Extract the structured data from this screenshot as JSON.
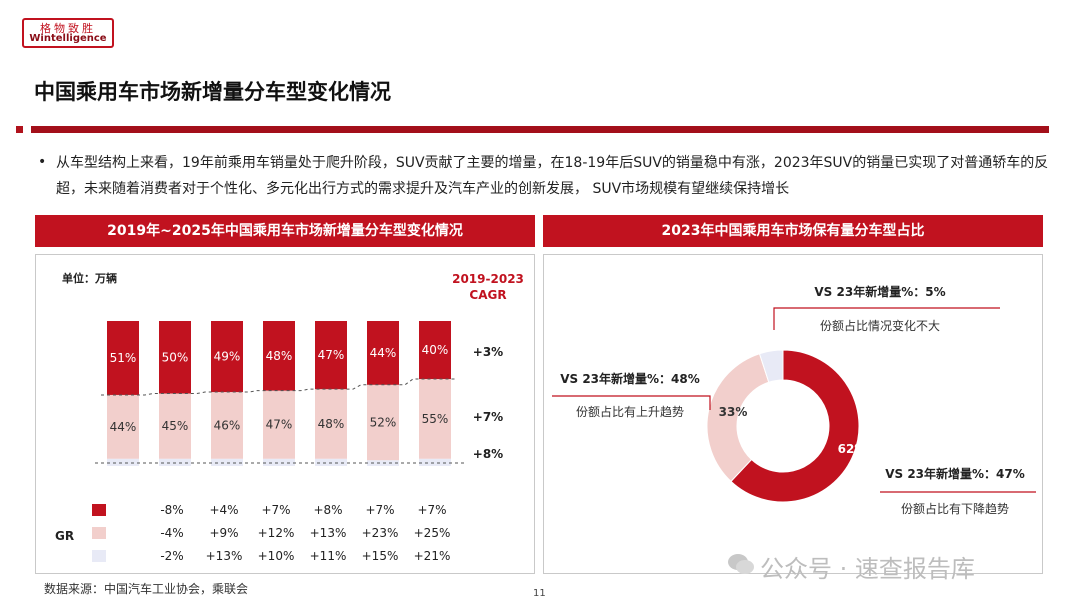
{
  "logo": {
    "cn": "格物致胜",
    "en": "Wintelligence"
  },
  "title": "中国乘用车市场新增量分车型变化情况",
  "bullet": "从车型结构上来看，19年前乘用车销量处于爬升阶段，SUV贡献了主要的增量，在18-19年后SUV的销量稳中有涨，2023年SUV的销量已实现了对普通轿车的反超，未来随着消费者对于个性化、多元化出行方式的需求提升及汽车产业的创新发展， SUV市场规模有望继续保持增长",
  "left_panel": {
    "header": "2019年~2025年中国乘用车市场新增量分车型变化情况",
    "unit": "单位：万辆",
    "cagr_label_1": "2019-2023",
    "cagr_label_2": "CAGR",
    "gr_label": "GR"
  },
  "right_panel": {
    "header": "2023年中国乘用车市场保有量分车型占比",
    "callouts": [
      {
        "title": "VS 23年新增量%：5%",
        "sub": "份额占比情况变化不大"
      },
      {
        "title": "VS 23年新增量%：48%",
        "sub": "份额占比有上升趋势"
      },
      {
        "title": "VS 23年新增量%：47%",
        "sub": "份额占比有下降趋势"
      }
    ]
  },
  "colors": {
    "red": "#c1121f",
    "pink": "#f2cfcc",
    "lavender": "#e8eaf6"
  },
  "chart_data": [
    {
      "type": "bar",
      "stacked": true,
      "categories": [
        "",
        "",
        "",
        "",
        "",
        "",
        ""
      ],
      "series": [
        {
          "color": "#c1121f",
          "values": [
            51,
            50,
            49,
            48,
            47,
            44,
            40
          ],
          "labels": [
            "51%",
            "50%",
            "49%",
            "48%",
            "47%",
            "44%",
            "40%"
          ],
          "cagr": "+3%",
          "gr": [
            "-8%",
            "+4%",
            "+7%",
            "+8%",
            "+7%",
            "+7%"
          ]
        },
        {
          "color": "#f2cfcc",
          "values": [
            44,
            45,
            46,
            47,
            48,
            52,
            55
          ],
          "labels": [
            "44%",
            "45%",
            "46%",
            "47%",
            "48%",
            "52%",
            "55%"
          ],
          "cagr": "+7%",
          "gr": [
            "-4%",
            "+9%",
            "+12%",
            "+13%",
            "+23%",
            "+25%"
          ]
        },
        {
          "color": "#e8eaf6",
          "values": [
            5,
            5,
            5,
            5,
            5,
            4,
            5
          ],
          "labels": [],
          "cagr": "+8%",
          "gr": [
            "-2%",
            "+13%",
            "+10%",
            "+11%",
            "+15%",
            "+21%"
          ]
        }
      ]
    },
    {
      "type": "pie",
      "donut": true,
      "slices": [
        {
          "value": 62,
          "label": "62%",
          "color": "#c1121f"
        },
        {
          "value": 33,
          "label": "33%",
          "color": "#f2cfcc"
        },
        {
          "value": 5,
          "label": "",
          "color": "#e8eaf6"
        }
      ]
    }
  ],
  "source": "数据来源：中国汽车工业协会，乘联会",
  "page_number": "11",
  "watermark": "公众号 · 速查报告库"
}
